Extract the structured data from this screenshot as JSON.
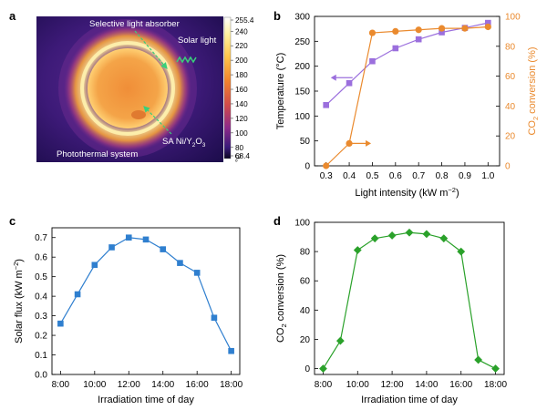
{
  "panels": {
    "a": {
      "label": "a",
      "annotations": {
        "absorber": "Selective light absorber",
        "solar": "Solar light",
        "catalyst_main": "SA Ni/Y",
        "catalyst_sub1": "2",
        "catalyst_mid": "O",
        "catalyst_sub2": "3",
        "system": "Photothermal system"
      },
      "colorbar": {
        "ticks": [
          "255.4",
          "240",
          "220",
          "200",
          "180",
          "160",
          "140",
          "120",
          "100",
          "80",
          "68.4"
        ],
        "unit": "°C"
      }
    },
    "b": {
      "label": "b"
    },
    "c": {
      "label": "c"
    },
    "d": {
      "label": "d"
    }
  },
  "colors": {
    "temperature": "#9b6fdd",
    "conversion_b": "#ea8a2e",
    "solar_flux": "#2f7fcf",
    "conversion_d": "#2aa12a"
  },
  "chart_data": [
    {
      "panel": "b",
      "type": "line",
      "x_label": "Light intensity (kW m",
      "x_label_sup": "−2",
      "x_label_end": ")",
      "x_ticks": [
        "0.3",
        "0.4",
        "0.5",
        "0.6",
        "0.7",
        "0.8",
        "0.9",
        "1.0"
      ],
      "xlim": [
        0.25,
        1.05
      ],
      "y_label_left": "Temperature (°C)",
      "y_ticks_left": [
        "0",
        "50",
        "100",
        "150",
        "200",
        "250",
        "300"
      ],
      "ylim_left": [
        0,
        300
      ],
      "y_label_right_main": "CO",
      "y_label_right_sub": "2",
      "y_label_right_end": " conversion (%)",
      "y_ticks_right": [
        "0",
        "20",
        "40",
        "60",
        "80",
        "100"
      ],
      "ylim_right": [
        0,
        100
      ],
      "series": [
        {
          "axis": "left",
          "marker": "square",
          "x": [
            0.3,
            0.4,
            0.5,
            0.6,
            0.7,
            0.8,
            0.9,
            1.0
          ],
          "y": [
            122,
            166,
            210,
            236,
            254,
            268,
            277,
            287
          ]
        },
        {
          "axis": "right",
          "marker": "circle",
          "x": [
            0.3,
            0.4,
            0.5,
            0.6,
            0.7,
            0.8,
            0.9,
            1.0
          ],
          "y": [
            0,
            15,
            89,
            90,
            91,
            92,
            92,
            93
          ]
        }
      ]
    },
    {
      "panel": "c",
      "type": "line",
      "x_label": "Irradiation time of day",
      "x_ticks": [
        "8:00",
        "10:00",
        "12:00",
        "14:00",
        "16:00",
        "18:00"
      ],
      "xlim": [
        7.5,
        18.5
      ],
      "y_label": "Solar flux (kW m",
      "y_label_sup": "−2",
      "y_label_end": ")",
      "y_ticks": [
        "0.0",
        "0.1",
        "0.2",
        "0.3",
        "0.4",
        "0.5",
        "0.6",
        "0.7"
      ],
      "ylim": [
        0,
        0.75
      ],
      "series": [
        {
          "marker": "square",
          "x": [
            8,
            9,
            10,
            11,
            12,
            13,
            14,
            15,
            16,
            17,
            18
          ],
          "y": [
            0.26,
            0.41,
            0.56,
            0.65,
            0.7,
            0.69,
            0.64,
            0.57,
            0.52,
            0.29,
            0.12
          ]
        }
      ]
    },
    {
      "panel": "d",
      "type": "line",
      "x_label": "Irradiation time of day",
      "x_ticks": [
        "8:00",
        "10:00",
        "12:00",
        "14:00",
        "16:00",
        "18:00"
      ],
      "xlim": [
        7.5,
        18.5
      ],
      "y_label_main": "CO",
      "y_label_sub": "2",
      "y_label_end": " conversion (%)",
      "y_ticks": [
        "0",
        "20",
        "40",
        "60",
        "80",
        "100"
      ],
      "ylim": [
        -4,
        100
      ],
      "series": [
        {
          "marker": "diamond",
          "x": [
            8,
            9,
            10,
            11,
            12,
            13,
            14,
            15,
            16,
            17,
            18
          ],
          "y": [
            0,
            19,
            81,
            89,
            91,
            93,
            92,
            89,
            80,
            6,
            0
          ]
        }
      ]
    }
  ]
}
